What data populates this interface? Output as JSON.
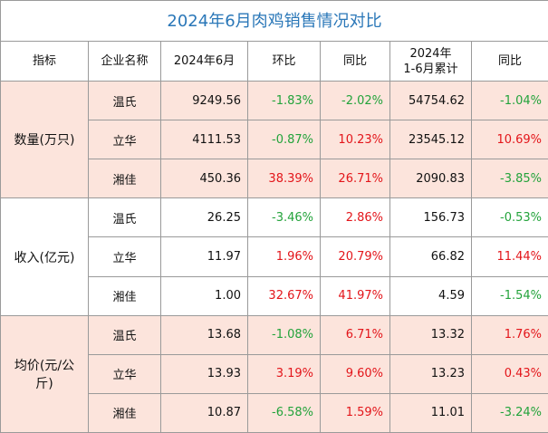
{
  "table": {
    "title": "2024年6月肉鸡销售情况对比",
    "headers": [
      "指标",
      "企业名称",
      "2024年6月",
      "环比",
      "同比",
      "2024年\n1-6月累计",
      "同比"
    ],
    "groups": [
      {
        "indicator": "数量(万只)",
        "rows": [
          [
            "温氏",
            "9249.56",
            "-1.83%",
            "-2.02%",
            "54754.62",
            "-1.04%"
          ],
          [
            "立华",
            "4111.53",
            "-0.87%",
            "10.23%",
            "23545.12",
            "10.69%"
          ],
          [
            "湘佳",
            "450.36",
            "38.39%",
            "26.71%",
            "2090.83",
            "-3.85%"
          ]
        ]
      },
      {
        "indicator": "收入(亿元)",
        "rows": [
          [
            "温氏",
            "26.25",
            "-3.46%",
            "2.86%",
            "156.73",
            "-0.53%"
          ],
          [
            "立华",
            "11.97",
            "1.96%",
            "20.79%",
            "66.82",
            "11.44%"
          ],
          [
            "湘佳",
            "1.00",
            "32.67%",
            "41.97%",
            "4.59",
            "-1.54%"
          ]
        ]
      },
      {
        "indicator": "均价(元/公斤)",
        "rows": [
          [
            "温氏",
            "13.68",
            "-1.08%",
            "6.71%",
            "13.32",
            "1.76%"
          ],
          [
            "立华",
            "13.93",
            "3.19%",
            "9.60%",
            "13.23",
            "0.43%"
          ],
          [
            "湘佳",
            "10.87",
            "-6.58%",
            "1.59%",
            "11.01",
            "-3.24%"
          ]
        ]
      }
    ]
  }
}
